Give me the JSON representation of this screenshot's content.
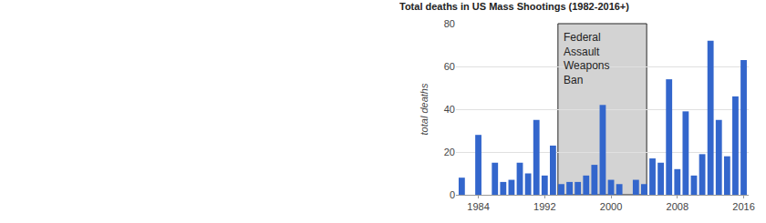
{
  "chart_data": {
    "type": "bar",
    "title": "Total deaths in US Mass Shootings (1982-2016+)",
    "y_label": "total deaths",
    "x": [
      1982,
      1983,
      1984,
      1985,
      1986,
      1987,
      1988,
      1989,
      1990,
      1991,
      1992,
      1993,
      1994,
      1995,
      1996,
      1997,
      1998,
      1999,
      2000,
      2001,
      2002,
      2003,
      2004,
      2005,
      2006,
      2007,
      2008,
      2009,
      2010,
      2011,
      2012,
      2013,
      2014,
      2015,
      2016
    ],
    "values": [
      8,
      0,
      28,
      0,
      15,
      6,
      7,
      15,
      10,
      35,
      9,
      23,
      5,
      6,
      6,
      9,
      14,
      42,
      7,
      5,
      0,
      7,
      5,
      17,
      15,
      54,
      12,
      39,
      9,
      19,
      72,
      35,
      18,
      46,
      63
    ],
    "color": "#3366cc",
    "xlim": [
      1981.3,
      2016.6
    ],
    "xticks": [
      1984,
      1992,
      2000,
      2008,
      2016
    ],
    "ylim": [
      0,
      80
    ],
    "yticks": [
      0,
      20,
      40,
      60,
      80
    ],
    "grid": true,
    "shaded_region": {
      "label": [
        "Federal",
        "Assault",
        "Weapons",
        "Ban"
      ],
      "x0": 1993.6,
      "x1": 2004.3
    }
  }
}
